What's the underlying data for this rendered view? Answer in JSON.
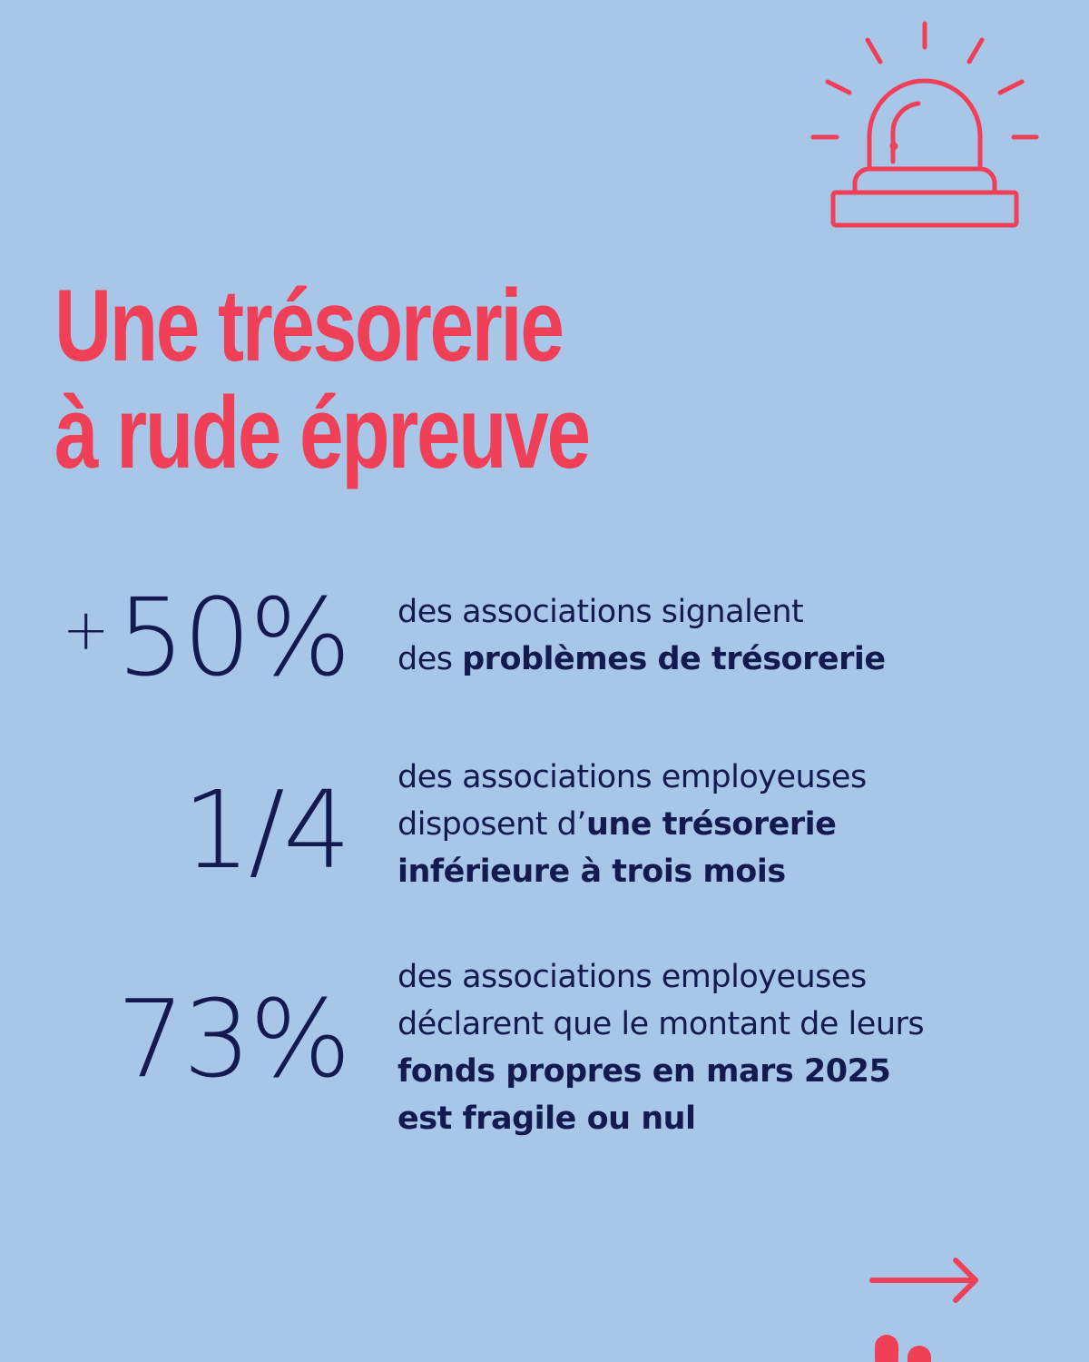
{
  "title": {
    "line1": "Une trésorerie",
    "line2": "à rude épreuve"
  },
  "stats": [
    {
      "prefix": "+",
      "value": "50%",
      "lines": [
        {
          "plain": "des associations signalent",
          "bold": ""
        },
        {
          "plain": "des ",
          "bold": "problèmes de trésorerie"
        }
      ]
    },
    {
      "prefix": "",
      "value": "1/4",
      "lines": [
        {
          "plain": "des associations employeuses",
          "bold": ""
        },
        {
          "plain": "disposent d’",
          "bold": "une trésorerie"
        },
        {
          "plain": "",
          "bold": "inférieure à trois mois"
        }
      ]
    },
    {
      "prefix": "",
      "value": "73%",
      "lines": [
        {
          "plain": "des associations employeuses",
          "bold": ""
        },
        {
          "plain": "déclarent que le montant de leurs",
          "bold": ""
        },
        {
          "plain": "",
          "bold": "fonds propres en mars 2025"
        },
        {
          "plain": "",
          "bold": "est fragile ou nul"
        }
      ]
    }
  ],
  "icons": {
    "alarm": "alarm-siren-icon",
    "arrow": "arrow-right-icon",
    "logo": "bar-logo-icon"
  },
  "colors": {
    "background": "#a7c6e8",
    "accent": "#ef4058",
    "text": "#131a4d"
  }
}
